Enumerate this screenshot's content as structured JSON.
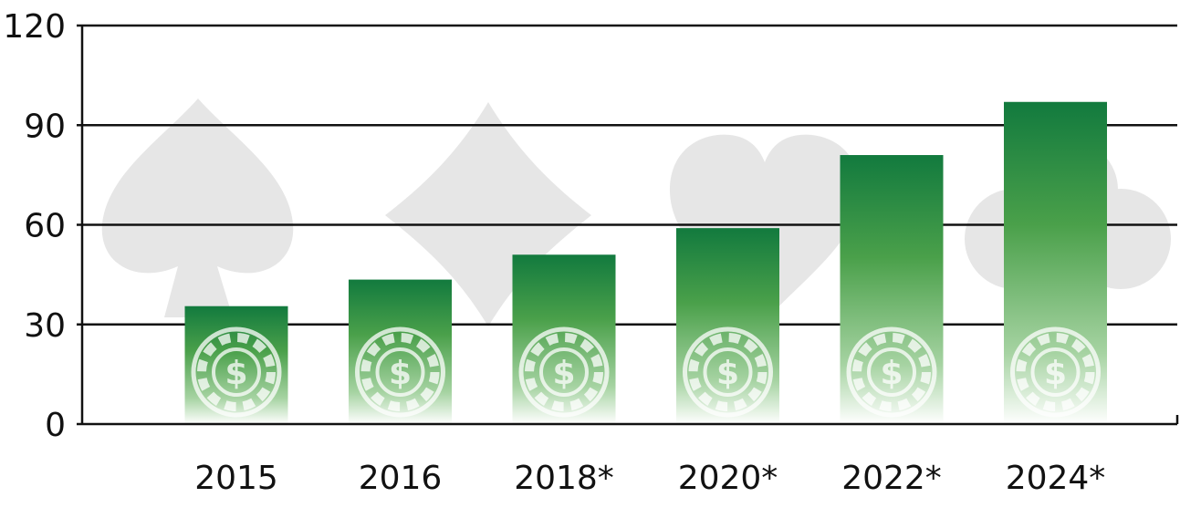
{
  "chart_data": {
    "type": "bar",
    "title": "",
    "xlabel": "",
    "ylabel": "",
    "categories": [
      "2015",
      "2016",
      "2018*",
      "2020*",
      "2022*",
      "2024*"
    ],
    "values": [
      35.5,
      43.5,
      51,
      59,
      81,
      97
    ],
    "ylim": [
      0,
      120
    ],
    "yticks": [
      0,
      30,
      60,
      90,
      120
    ],
    "grid": true,
    "legend": "none",
    "colors": {
      "bar_top": "#127a3e",
      "bar_mid": "#4aa04a",
      "bar_fade": "#ffffff",
      "suit_watermark": "#e6e6e6",
      "axis": "#111111"
    },
    "background_icons": [
      "spade-icon",
      "diamond-icon",
      "heart-icon",
      "club-icon"
    ],
    "bar_icon": "casino-chip-dollar-icon"
  }
}
